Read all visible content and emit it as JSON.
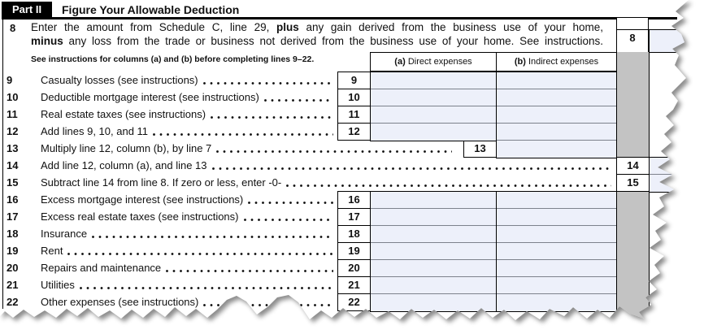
{
  "form": {
    "part_label": "Part II",
    "part_title": "Figure Your Allowable Deduction",
    "line8": {
      "num": "8",
      "box_num": "8",
      "line1": [
        {
          "t": "Enter the amount from Schedule C, line 29, "
        },
        {
          "t": "plus",
          "b": 1
        },
        {
          "t": " any gain derived from the business use of your home,"
        }
      ],
      "line2": [
        {
          "t": "minus",
          "b": 1
        },
        {
          "t": " any loss from the trade or business not derived from the business use of your home. See instructions."
        }
      ]
    },
    "note": "See instructions for columns (a) and (b) before completing lines 9–22.",
    "columns": [
      {
        "prefix": "(a)",
        "label": "Direct expenses"
      },
      {
        "prefix": "(b)",
        "label": "Indirect expenses"
      }
    ],
    "rows": [
      {
        "num": "9",
        "label": "Casualty losses (see instructions)",
        "type": "ab"
      },
      {
        "num": "10",
        "label": "Deductible mortgage interest (see instructions)",
        "type": "ab"
      },
      {
        "num": "11",
        "label": "Real estate taxes (see instructions)",
        "type": "ab"
      },
      {
        "num": "12",
        "label": "Add lines 9, 10, and 11",
        "type": "ab"
      },
      {
        "num": "13",
        "label": "Multiply line 12, column (b), by line 7",
        "type": "b"
      },
      {
        "num": "14",
        "label": "Add line 12, column (a), and line 13",
        "type": "right"
      },
      {
        "num": "15",
        "label": "Subtract line 14 from line 8. If zero or less, enter -0-",
        "type": "right"
      },
      {
        "num": "16",
        "label": "Excess mortgage interest (see instructions)",
        "type": "ab"
      },
      {
        "num": "17",
        "label": "Excess real estate taxes (see instructions)",
        "type": "ab"
      },
      {
        "num": "18",
        "label": "Insurance",
        "type": "ab"
      },
      {
        "num": "19",
        "label": "Rent",
        "type": "ab"
      },
      {
        "num": "20",
        "label": "Repairs and maintenance",
        "type": "ab"
      },
      {
        "num": "21",
        "label": "Utilities",
        "type": "ab"
      },
      {
        "num": "22",
        "label": "Other expenses (see instructions)",
        "type": "ab"
      }
    ],
    "colors": {
      "entry_field": "#EDF0FA",
      "shaded_column": "#C3C3C3",
      "header_bar": "#000000"
    }
  }
}
